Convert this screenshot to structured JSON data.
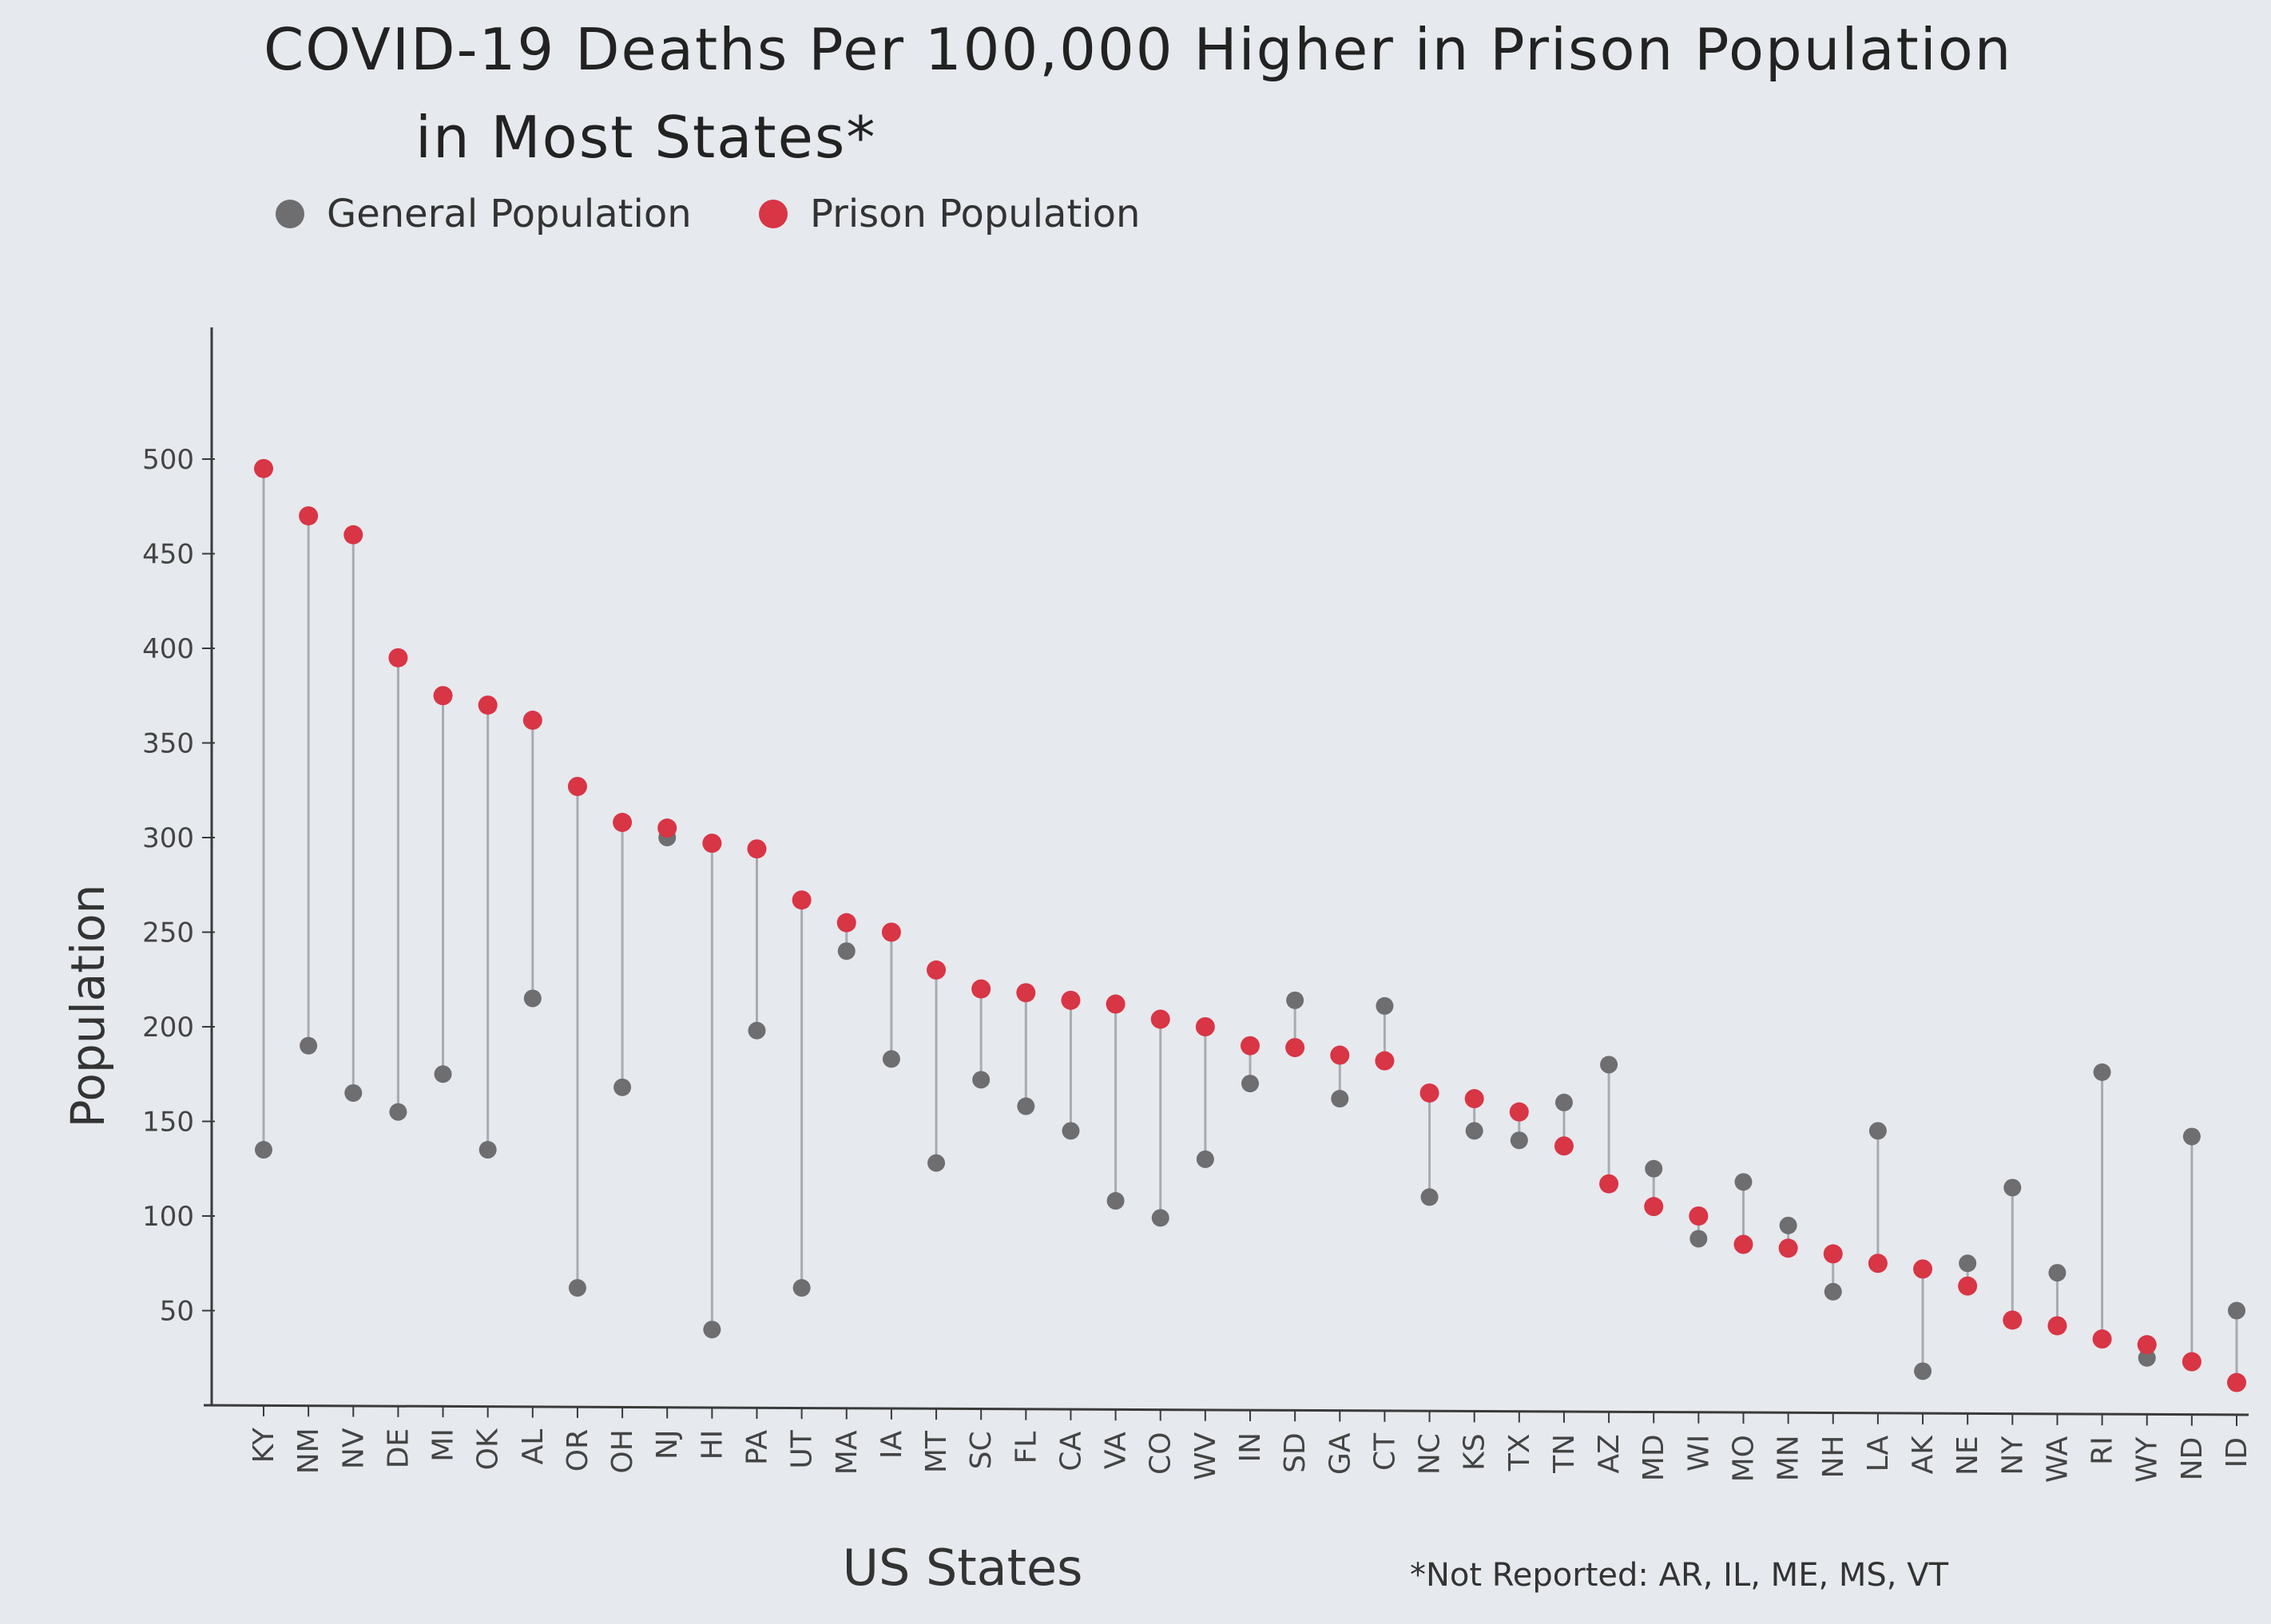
{
  "title_line1": "COVID-19 Deaths Per 100,000 Higher in Prison Population",
  "title_line2": "in Most States*",
  "footnote": "*Not Reported: AR, IL, ME, MS, VT",
  "colors": {
    "general": "#6e6e70",
    "prison": "#d83545",
    "stem": "#a9abb1",
    "axis": "#3a3a3a"
  },
  "chart_data": {
    "type": "scatter",
    "title": "COVID-19 Deaths Per 100,000 Higher in Prison Population in Most States*",
    "xlabel": "US States",
    "ylabel": "Population",
    "ylim": [
      0,
      520
    ],
    "yticks": [
      50,
      100,
      150,
      200,
      250,
      300,
      350,
      400,
      450,
      500
    ],
    "legend": {
      "position": "top-left",
      "entries": [
        "General Population",
        "Prison Population"
      ]
    },
    "categories": [
      "KY",
      "NM",
      "NV",
      "DE",
      "MI",
      "OK",
      "AL",
      "OR",
      "OH",
      "NJ",
      "HI",
      "PA",
      "UT",
      "MA",
      "IA",
      "MT",
      "SC",
      "FL",
      "CA",
      "VA",
      "CO",
      "WV",
      "IN",
      "SD",
      "GA",
      "CT",
      "NC",
      "KS",
      "TX",
      "TN",
      "AZ",
      "MD",
      "WI",
      "MO",
      "MN",
      "NH",
      "LA",
      "AK",
      "NE",
      "NY",
      "WA",
      "RI",
      "WY",
      "ND",
      "ID"
    ],
    "series": [
      {
        "name": "General Population",
        "values": [
          135,
          190,
          165,
          155,
          175,
          135,
          215,
          62,
          168,
          300,
          40,
          198,
          62,
          240,
          183,
          128,
          172,
          158,
          145,
          108,
          99,
          130,
          170,
          214,
          162,
          211,
          110,
          145,
          140,
          160,
          180,
          125,
          88,
          118,
          95,
          60,
          145,
          18,
          75,
          115,
          70,
          176,
          25,
          142,
          50
        ]
      },
      {
        "name": "Prison Population",
        "values": [
          495,
          470,
          460,
          395,
          375,
          370,
          362,
          327,
          308,
          305,
          297,
          294,
          267,
          255,
          250,
          230,
          220,
          218,
          214,
          212,
          204,
          200,
          190,
          189,
          185,
          182,
          165,
          162,
          155,
          137,
          117,
          105,
          100,
          85,
          83,
          80,
          75,
          72,
          63,
          45,
          42,
          35,
          32,
          23,
          12
        ]
      }
    ]
  }
}
